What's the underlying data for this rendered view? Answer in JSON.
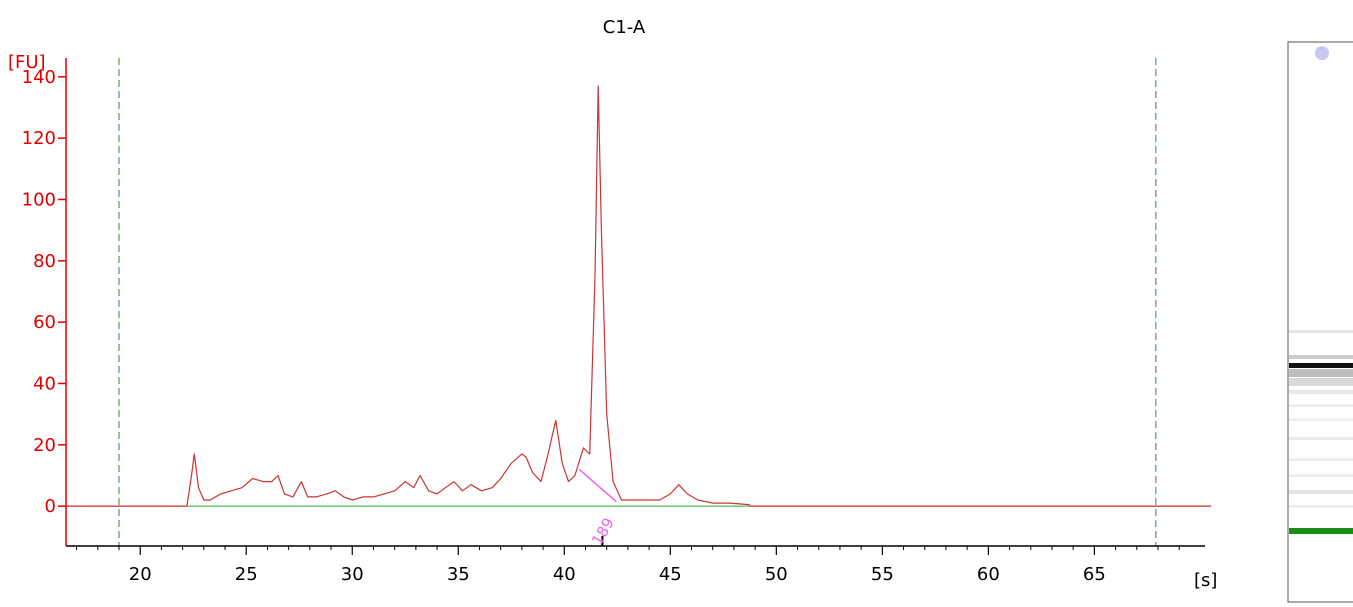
{
  "chart_data": {
    "type": "line",
    "title": "C1-A",
    "ylabel": "[FU]",
    "xlabel": "[s]",
    "xlim": [
      16.5,
      70.5
    ],
    "ylim": [
      -13,
      152
    ],
    "x_ticks": [
      20,
      25,
      30,
      35,
      40,
      45,
      50,
      55,
      60,
      65
    ],
    "y_ticks": [
      0,
      20,
      40,
      60,
      80,
      100,
      120,
      140
    ],
    "x_tick_labels": [
      "20",
      "25",
      "30",
      "35",
      "40",
      "45",
      "50",
      "55",
      "60",
      "65"
    ],
    "y_tick_labels": [
      "0",
      "20",
      "40",
      "60",
      "80",
      "100",
      "120",
      "140"
    ],
    "grid": false,
    "baseline": 0,
    "series": [
      {
        "name": "",
        "color": "#cc3333",
        "x": [
          16.5,
          22.2,
          22.4,
          22.55,
          22.75,
          23.0,
          23.3,
          23.8,
          24.3,
          24.8,
          25.3,
          25.8,
          26.2,
          26.5,
          26.8,
          27.2,
          27.6,
          27.9,
          28.3,
          28.8,
          29.2,
          29.6,
          30.0,
          30.5,
          31.0,
          31.5,
          32.0,
          32.5,
          32.9,
          33.2,
          33.6,
          34.0,
          34.4,
          34.8,
          35.2,
          35.6,
          36.1,
          36.6,
          37.0,
          37.5,
          38.0,
          38.2,
          38.5,
          38.9,
          39.2,
          39.6,
          39.9,
          40.2,
          40.5,
          40.9,
          41.2,
          41.45,
          41.6,
          41.75,
          42.0,
          42.3,
          42.7,
          43.5,
          44.5,
          45.0,
          45.4,
          45.8,
          46.3,
          47.0,
          47.8,
          48.7,
          48.75,
          70.5
        ],
        "y": [
          0,
          0,
          9,
          17,
          6,
          2,
          2,
          4,
          5,
          6,
          9,
          8,
          8,
          10,
          4,
          3,
          8,
          3,
          3,
          4,
          5,
          3,
          2,
          3,
          3,
          4,
          5,
          8,
          6,
          10,
          5,
          4,
          6,
          8,
          5,
          7,
          5,
          6,
          9,
          14,
          17,
          16,
          11,
          8,
          16,
          28,
          14,
          8,
          10,
          19,
          17,
          75,
          137,
          90,
          30,
          8,
          2,
          2,
          2,
          4,
          7,
          4,
          2,
          1,
          1,
          0.5,
          0,
          0
        ]
      }
    ],
    "markers": {
      "lower_marker_x": 19.0,
      "upper_marker_x": 67.9,
      "peak_tick_x": 41.8
    },
    "peak_label": {
      "text": "189",
      "x": 42.5,
      "y": 0
    },
    "colors": {
      "trace": "#cc3333",
      "baseline": "#55bb55",
      "marker_lines": "#338833",
      "peak_line": "#ee66ee",
      "y_axis": "#e00000",
      "x_axis": "#000000"
    }
  },
  "gel_lane": {
    "colors": {
      "main_band": "#111111",
      "lower_marker_band": "#1a8c1a",
      "upper_marker_spot": "#c8c8f0"
    }
  }
}
